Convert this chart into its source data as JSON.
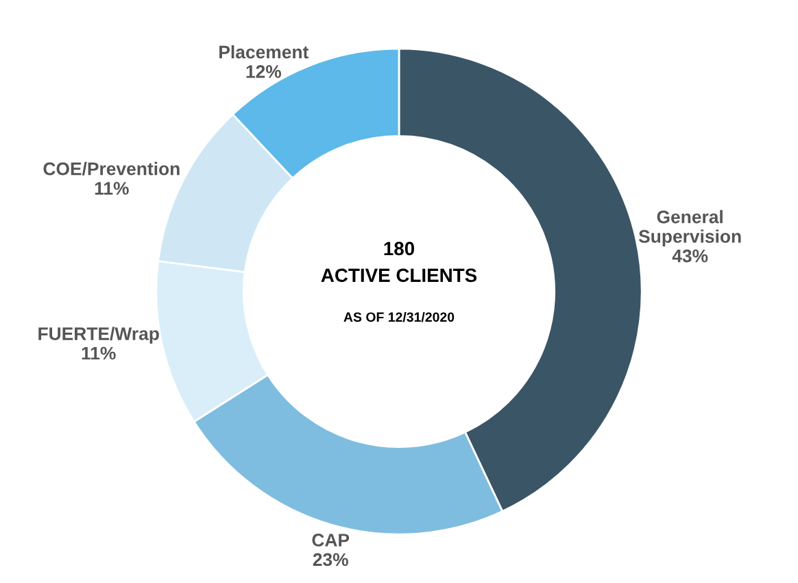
{
  "chart_data": {
    "type": "donut",
    "categories": [
      "General Supervision",
      "CAP",
      "FUERTE/Wrap",
      "COE/Prevention",
      "Placement"
    ],
    "values": [
      43,
      23,
      11,
      11,
      12
    ],
    "colors": [
      "#3a5566",
      "#7fbde0",
      "#d9eef8",
      "#cfe7f4",
      "#5cb9e9"
    ],
    "value_labels": [
      "43%",
      "23%",
      "11%",
      "11%",
      "12%"
    ],
    "annotations": [
      "180",
      "ACTIVE CLIENTS",
      "AS OF 12/31/2020"
    ]
  }
}
